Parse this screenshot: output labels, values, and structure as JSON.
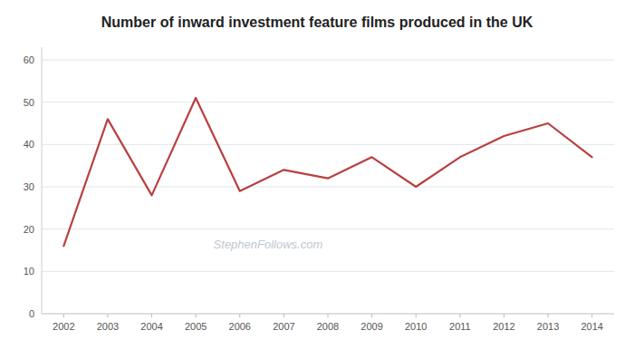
{
  "chart_data": {
    "type": "line",
    "title": "Number of inward investment feature films produced in the UK",
    "x": [
      2002,
      2003,
      2004,
      2005,
      2006,
      2007,
      2008,
      2009,
      2010,
      2011,
      2012,
      2013,
      2014
    ],
    "values": [
      16,
      46,
      28,
      51,
      29,
      34,
      32,
      37,
      30,
      37,
      42,
      45,
      37
    ],
    "color": "#b94040",
    "xlim": [
      2001.5,
      2014.5
    ],
    "xticks": [
      2002,
      2003,
      2004,
      2005,
      2006,
      2007,
      2008,
      2009,
      2010,
      2011,
      2012,
      2013,
      2014
    ],
    "ylim": [
      0,
      63
    ],
    "yticks": [
      0,
      10,
      20,
      30,
      40,
      50,
      60
    ],
    "grid": true,
    "annotations": [
      "StephenFollows.com"
    ]
  }
}
